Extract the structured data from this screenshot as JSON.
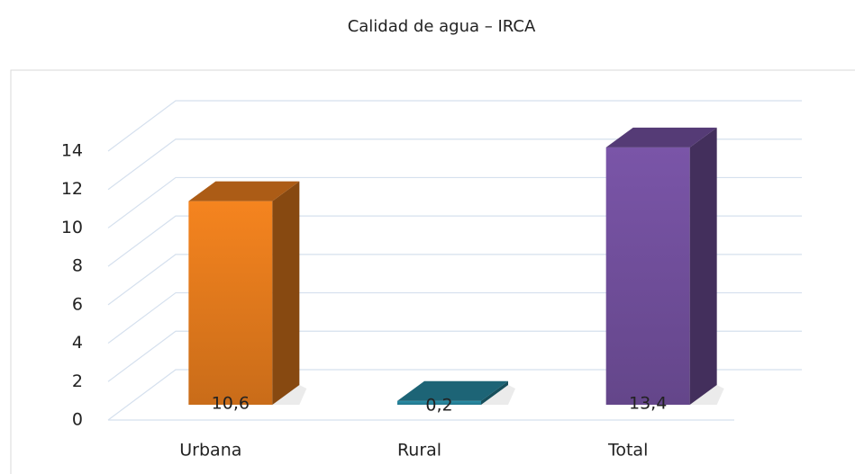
{
  "chart_data": {
    "type": "bar3d",
    "title": "Calidad de agua – IRCA",
    "categories": [
      "Urbana",
      "Rural",
      "Total"
    ],
    "values": [
      10.6,
      0.2,
      13.4
    ],
    "value_labels": [
      "10,6",
      "0,2",
      "13,4"
    ],
    "colors": [
      "#f5841f",
      "#2a8fa8",
      "#7a55a8"
    ],
    "ylim": [
      0,
      14
    ],
    "yticks": [
      0,
      2,
      4,
      6,
      8,
      10,
      12,
      14
    ],
    "grid": true
  }
}
